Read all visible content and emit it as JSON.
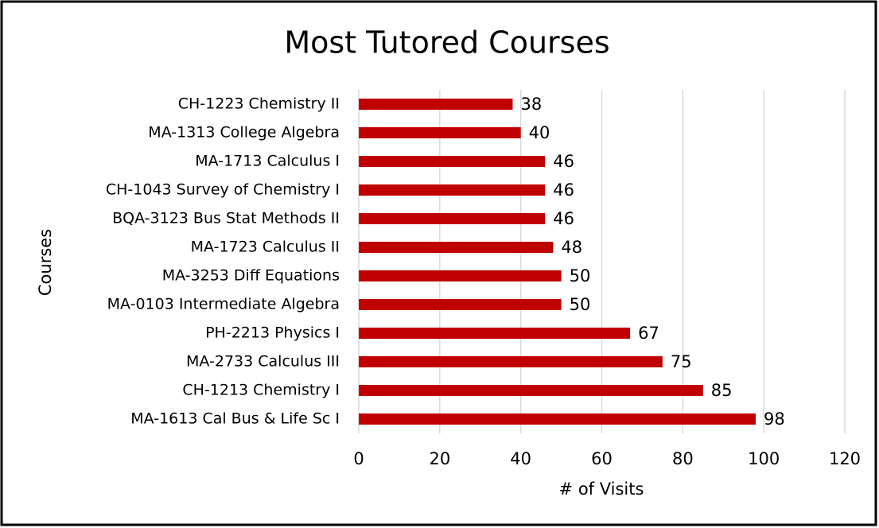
{
  "chart_data": {
    "type": "bar",
    "orientation": "horizontal",
    "title": "Most Tutored Courses",
    "x_axis_label": "# of Visits",
    "y_axis_label": "Courses",
    "categories": [
      "CH-1223 Chemistry II",
      "MA-1313 College Algebra",
      "MA-1713 Calculus I",
      "CH-1043 Survey of Chemistry I",
      "BQA-3123 Bus Stat Methods II",
      "MA-1723 Calculus II",
      "MA-3253 Diff Equations",
      "MA-0103 Intermediate Algebra",
      "PH-2213 Physics I",
      "MA-2733 Calculus III",
      "CH-1213 Chemistry I",
      "MA-1613 Cal Bus & Life Sc I"
    ],
    "values": [
      38,
      40,
      46,
      46,
      46,
      48,
      50,
      50,
      67,
      75,
      85,
      98
    ],
    "color": "#c00000",
    "xlim": [
      0,
      120
    ],
    "xticks": [
      0,
      20,
      40,
      60,
      80,
      100,
      120
    ],
    "grid": true
  }
}
